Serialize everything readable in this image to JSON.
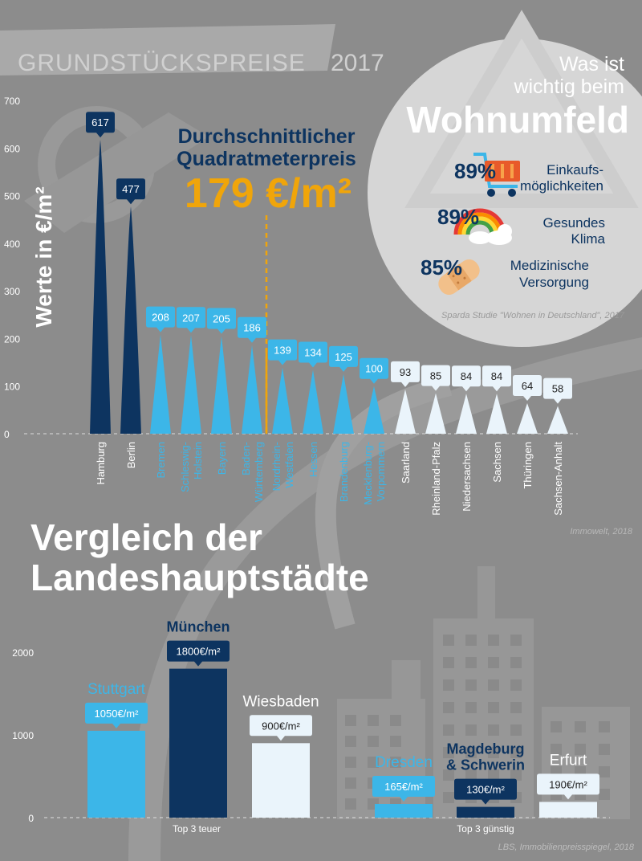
{
  "header": {
    "title": "GRUNDSTÜCKSPREISE",
    "year": "2017"
  },
  "highlight": {
    "line1": "Durchschnittlicher",
    "line2": "Quadratmeterpreis",
    "value": "179 €/m²"
  },
  "survey": {
    "title_line1": "Was ist",
    "title_line2": "wichtig beim",
    "title_big": "Wohnumfeld",
    "items": [
      {
        "pct": "89%",
        "line1": "Einkaufs-",
        "line2": "möglichkeiten",
        "icon": "shopping-cart-icon"
      },
      {
        "pct": "89%",
        "line1": "Gesundes",
        "line2": "Klima",
        "icon": "rainbow-icon"
      },
      {
        "pct": "85%",
        "line1": "Medizinische",
        "line2": "Versorgung",
        "icon": "bandage-icon"
      }
    ],
    "source": "Sparda Studie \"Wohnen in Deutschland\", 2017"
  },
  "colors": {
    "dark": "#0d3460",
    "mid": "#3cb6e8",
    "light": "#eaf4fb",
    "orange": "#f0a50a",
    "grey": "#8c8c8c"
  },
  "chart_data": [
    {
      "type": "bar",
      "title": "GRUNDSTÜCKSPREISE 2017",
      "ylabel": "Werte in €/m²",
      "ylim": [
        0,
        700
      ],
      "yticks": [
        0,
        100,
        200,
        300,
        400,
        500,
        600,
        700
      ],
      "average_value": 179,
      "categories": [
        "Hamburg",
        "Berlin",
        "Bremen",
        "Schleswig-Holstein",
        "Bayern",
        "Baden-Württemberg",
        "Nordrhein-Westfalen",
        "Hessen",
        "Brandenburg",
        "Mecklenburg-Vorpommern",
        "Saarland",
        "Rheinland-Pfalz",
        "Niedersachsen",
        "Sachsen",
        "Thüringen",
        "Sachsen-Anhalt"
      ],
      "label_lines": [
        [
          "Hamburg"
        ],
        [
          "Berlin"
        ],
        [
          "Bremen"
        ],
        [
          "Schleswig-",
          "Holstein"
        ],
        [
          "Bayern"
        ],
        [
          "Baden-",
          "Württemberg"
        ],
        [
          "Nordrhein-",
          "Westfalen"
        ],
        [
          "Hessen"
        ],
        [
          "Brandenburg"
        ],
        [
          "Mecklenburg-",
          "Vorpommern"
        ],
        [
          "Saarland"
        ],
        [
          "Rheinland-Pfalz"
        ],
        [
          "Niedersachsen"
        ],
        [
          "Sachsen"
        ],
        [
          "Thüringen"
        ],
        [
          "Sachsen-Anhalt"
        ]
      ],
      "values": [
        617,
        477,
        208,
        207,
        205,
        186,
        139,
        134,
        125,
        100,
        93,
        85,
        84,
        84,
        64,
        58
      ],
      "source": "Immowelt, 2018"
    },
    {
      "type": "bar",
      "title_line1": "Vergleich der",
      "title_line2": "Landeshauptstädte",
      "ylim": [
        0,
        2000
      ],
      "yticks": [
        0,
        1000,
        2000
      ],
      "categories": [
        "Stuttgart",
        "München",
        "Wiesbaden",
        "Dresden",
        "Magdeburg & Schwerin",
        "Erfurt"
      ],
      "name_lines": [
        [
          "Stuttgart"
        ],
        [
          "München"
        ],
        [
          "Wiesbaden"
        ],
        [
          "Dresden"
        ],
        [
          "Magdeburg",
          "& Schwerin"
        ],
        [
          "Erfurt"
        ]
      ],
      "values": [
        1050,
        1800,
        900,
        165,
        130,
        190
      ],
      "value_labels": [
        "1050€/m²",
        "1800€/m²",
        "900€/m²",
        "165€/m²",
        "130€/m²",
        "190€/m²"
      ],
      "groups": [
        "Top 3 teuer",
        "Top 3 günstig"
      ],
      "source": "LBS, Immobilienpreisspiegel, 2018"
    }
  ]
}
